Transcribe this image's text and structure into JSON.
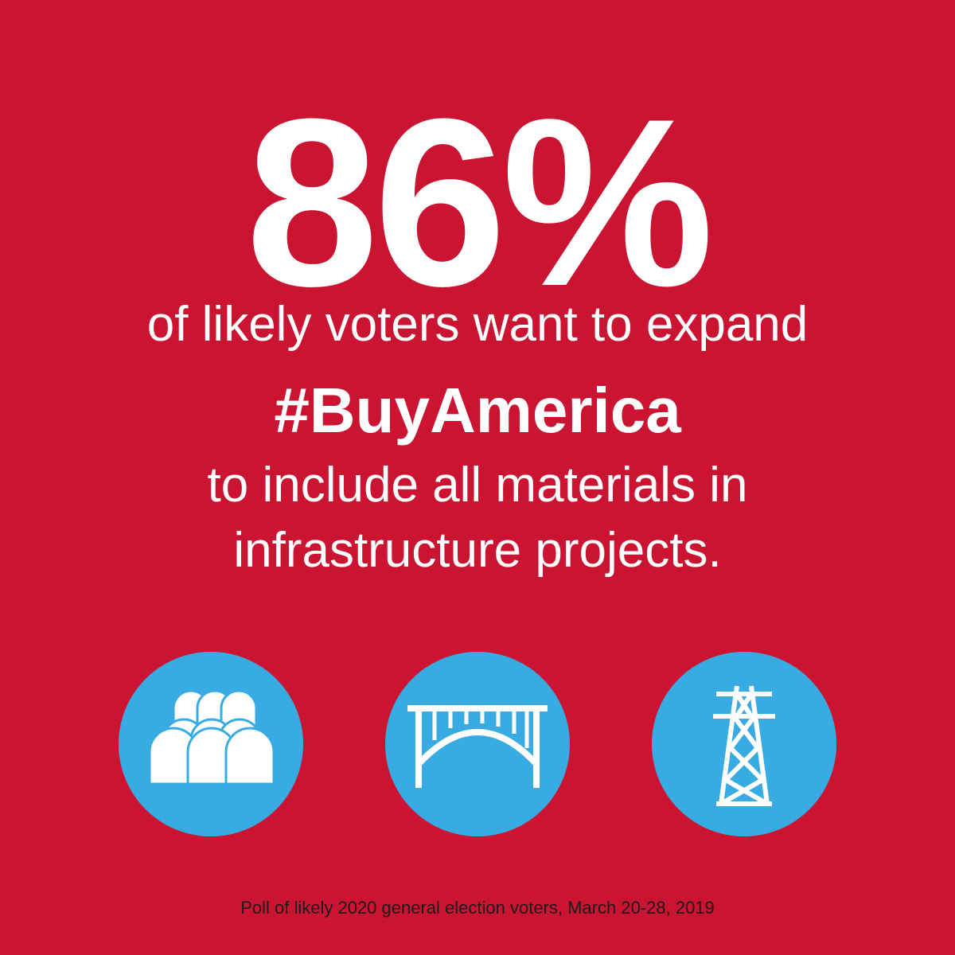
{
  "headline": "86%",
  "lines": [
    "of likely voters want to expand",
    "#BuyAmerica",
    "to include all materials in",
    "infrastructure projects."
  ],
  "footnote": "Poll of likely 2020 general election voters, March 20-28, 2019"
}
